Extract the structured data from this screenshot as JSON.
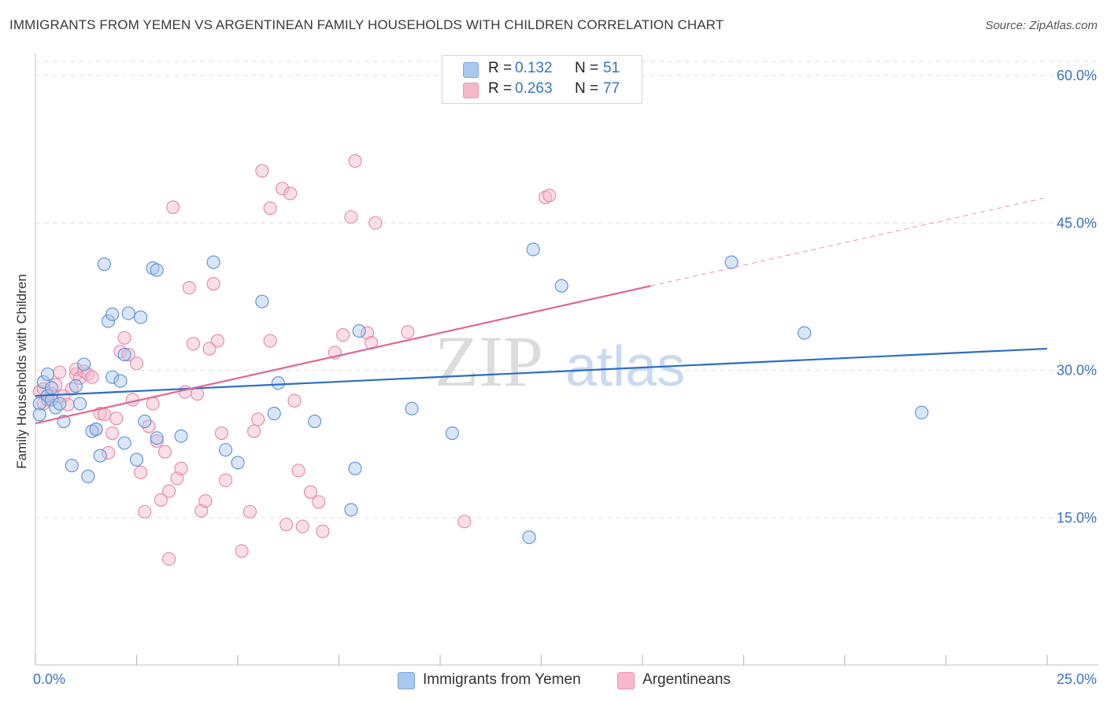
{
  "title": "IMMIGRANTS FROM YEMEN VS ARGENTINEAN FAMILY HOUSEHOLDS WITH CHILDREN CORRELATION CHART",
  "source": "Source: ZipAtlas.com",
  "watermark": {
    "zip": "ZIP",
    "atlas": "atlas"
  },
  "legend_top": [
    {
      "r_label": "R =",
      "r_value": "0.132",
      "n_label": "N =",
      "n_value": "51",
      "color": "#a9c8ef"
    },
    {
      "r_label": "R =",
      "r_value": "0.263",
      "n_label": "N =",
      "n_value": "77",
      "color": "#f6b8cb"
    }
  ],
  "legend_bottom": [
    {
      "label": "Immigrants from Yemen",
      "color": "#a9c8ef"
    },
    {
      "label": "Argentineans",
      "color": "#f6b8cb"
    }
  ],
  "colors": {
    "blue_fill": "#a9c8ef",
    "blue_stroke": "#5b8fd6",
    "blue_line": "#2a6dc9",
    "pink_fill": "#f6b8cb",
    "pink_stroke": "#e486a6",
    "pink_line": "#e0678f",
    "tick_text": "#3a73c4",
    "grid": "#e2e2e2"
  },
  "chart_data": {
    "type": "scatter",
    "title": "IMMIGRANTS FROM YEMEN VS ARGENTINEAN FAMILY HOUSEHOLDS WITH CHILDREN CORRELATION CHART",
    "xlabel": "",
    "ylabel": "Family Households with Children",
    "xlim": [
      0,
      25
    ],
    "ylim": [
      0,
      60
    ],
    "x_tick_labels": [
      {
        "value": 0,
        "label": "0.0%"
      },
      {
        "value": 25,
        "label": "25.0%"
      }
    ],
    "y_tick_labels": [
      {
        "value": 15,
        "label": "15.0%"
      },
      {
        "value": 30,
        "label": "30.0%"
      },
      {
        "value": 45,
        "label": "45.0%"
      },
      {
        "value": 60,
        "label": "60.0%"
      }
    ],
    "series": [
      {
        "name": "Immigrants from Yemen",
        "color": "blue",
        "trend": {
          "x0": 0,
          "y0": 27.4,
          "x1": 25,
          "y1": 32.2,
          "solid_to": 25
        },
        "points": [
          [
            0.1,
            26.6
          ],
          [
            0.2,
            28.8
          ],
          [
            0.3,
            29.6
          ],
          [
            0.3,
            27.4
          ],
          [
            0.4,
            27.0
          ],
          [
            0.5,
            26.2
          ],
          [
            0.6,
            26.6
          ],
          [
            0.7,
            24.8
          ],
          [
            0.9,
            20.3
          ],
          [
            1.0,
            28.4
          ],
          [
            1.1,
            26.6
          ],
          [
            1.2,
            30.6
          ],
          [
            1.3,
            19.2
          ],
          [
            1.4,
            23.8
          ],
          [
            1.5,
            24.0
          ],
          [
            1.6,
            21.3
          ],
          [
            1.7,
            40.8
          ],
          [
            1.8,
            35.0
          ],
          [
            1.9,
            35.7
          ],
          [
            1.9,
            29.3
          ],
          [
            2.1,
            28.9
          ],
          [
            2.2,
            31.6
          ],
          [
            2.2,
            22.6
          ],
          [
            2.3,
            35.8
          ],
          [
            2.5,
            20.9
          ],
          [
            2.6,
            35.4
          ],
          [
            2.7,
            24.8
          ],
          [
            2.9,
            40.4
          ],
          [
            3.0,
            40.2
          ],
          [
            3.0,
            23.1
          ],
          [
            3.6,
            23.3
          ],
          [
            4.4,
            41.0
          ],
          [
            4.7,
            21.9
          ],
          [
            5.0,
            20.6
          ],
          [
            5.6,
            37.0
          ],
          [
            5.9,
            25.6
          ],
          [
            6.0,
            28.7
          ],
          [
            6.9,
            24.8
          ],
          [
            7.8,
            15.8
          ],
          [
            7.9,
            20.0
          ],
          [
            8.0,
            34.0
          ],
          [
            9.3,
            26.1
          ],
          [
            10.3,
            23.6
          ],
          [
            12.2,
            13.0
          ],
          [
            12.3,
            42.3
          ],
          [
            13.0,
            38.6
          ],
          [
            17.2,
            41.0
          ],
          [
            19.0,
            33.8
          ],
          [
            21.9,
            25.7
          ],
          [
            0.1,
            25.5
          ],
          [
            0.4,
            28.2
          ]
        ]
      },
      {
        "name": "Argentineans",
        "color": "pink",
        "trend": {
          "x0": 0,
          "y0": 24.6,
          "x1": 25,
          "y1": 47.6,
          "solid_to": 15.2
        },
        "points": [
          [
            0.1,
            27.8
          ],
          [
            0.2,
            26.6
          ],
          [
            0.2,
            28.1
          ],
          [
            0.3,
            27.0
          ],
          [
            0.4,
            27.6
          ],
          [
            0.5,
            28.5
          ],
          [
            0.6,
            29.8
          ],
          [
            0.7,
            27.4
          ],
          [
            0.8,
            26.5
          ],
          [
            0.9,
            28.1
          ],
          [
            1.0,
            29.6
          ],
          [
            1.0,
            30.1
          ],
          [
            1.1,
            29.2
          ],
          [
            1.2,
            29.9
          ],
          [
            1.3,
            29.6
          ],
          [
            1.4,
            29.3
          ],
          [
            1.5,
            24.0
          ],
          [
            1.6,
            25.6
          ],
          [
            1.7,
            25.5
          ],
          [
            1.8,
            21.6
          ],
          [
            1.9,
            23.6
          ],
          [
            2.0,
            25.1
          ],
          [
            2.1,
            31.9
          ],
          [
            2.2,
            33.3
          ],
          [
            2.3,
            31.6
          ],
          [
            2.4,
            27.0
          ],
          [
            2.5,
            30.7
          ],
          [
            2.6,
            19.6
          ],
          [
            2.7,
            15.6
          ],
          [
            2.8,
            24.3
          ],
          [
            2.9,
            26.6
          ],
          [
            3.0,
            22.8
          ],
          [
            3.1,
            16.8
          ],
          [
            3.2,
            21.7
          ],
          [
            3.3,
            17.7
          ],
          [
            3.3,
            10.8
          ],
          [
            3.4,
            46.6
          ],
          [
            3.5,
            19.0
          ],
          [
            3.6,
            20.0
          ],
          [
            3.7,
            27.8
          ],
          [
            3.8,
            38.4
          ],
          [
            3.9,
            32.7
          ],
          [
            4.0,
            27.6
          ],
          [
            4.1,
            15.7
          ],
          [
            4.2,
            16.7
          ],
          [
            4.3,
            32.2
          ],
          [
            4.4,
            38.8
          ],
          [
            4.5,
            33.0
          ],
          [
            4.6,
            23.6
          ],
          [
            4.7,
            18.8
          ],
          [
            5.1,
            11.6
          ],
          [
            5.3,
            15.6
          ],
          [
            5.4,
            23.8
          ],
          [
            5.5,
            25.0
          ],
          [
            5.6,
            50.3
          ],
          [
            5.8,
            46.5
          ],
          [
            5.8,
            33.0
          ],
          [
            6.1,
            48.5
          ],
          [
            6.2,
            14.3
          ],
          [
            6.3,
            48.0
          ],
          [
            6.4,
            26.9
          ],
          [
            6.5,
            19.8
          ],
          [
            6.6,
            14.1
          ],
          [
            6.8,
            17.6
          ],
          [
            7.0,
            16.6
          ],
          [
            7.1,
            13.6
          ],
          [
            7.4,
            31.8
          ],
          [
            7.6,
            33.6
          ],
          [
            7.8,
            45.6
          ],
          [
            7.9,
            51.3
          ],
          [
            8.2,
            33.8
          ],
          [
            8.4,
            45.0
          ],
          [
            9.2,
            33.9
          ],
          [
            10.6,
            14.6
          ],
          [
            12.6,
            47.6
          ],
          [
            12.7,
            47.8
          ],
          [
            8.3,
            32.8
          ]
        ]
      }
    ]
  }
}
